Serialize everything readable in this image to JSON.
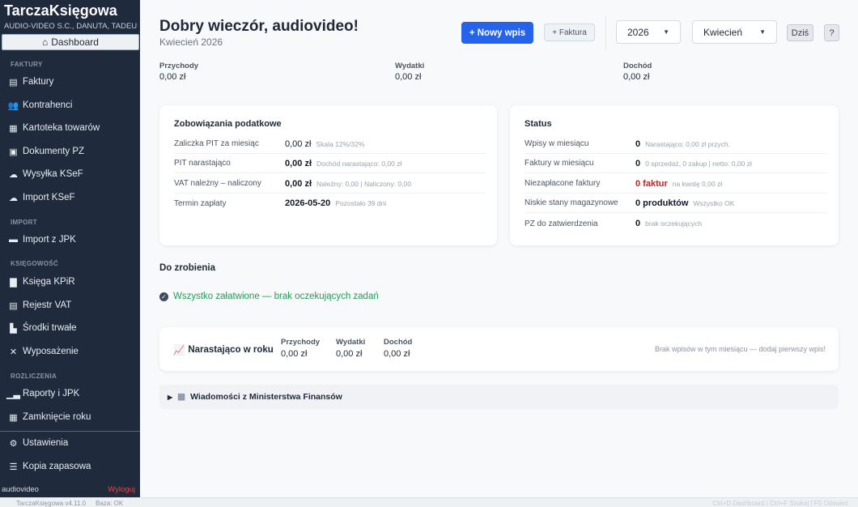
{
  "sidebar": {
    "brand": "TarczaKsięgowa",
    "company": "AUDIO-VIDEO S.C., DANUTA, TADEUSZ ...",
    "dashboard": "Dashboard",
    "sections": {
      "faktury": "FAKTURY",
      "import": "IMPORT",
      "ksiegowosc": "KSIĘGOWOŚĆ",
      "rozliczenia": "ROZLICZENIA"
    },
    "items": [
      "Faktury",
      "Kontrahenci",
      "Kartoteka towarów",
      "Dokumenty PZ",
      "Wysyłka KSeF",
      "Import KSeF",
      "Import z JPK",
      "Księga KPiR",
      "Rejestr VAT",
      "Środki trwałe",
      "Wyposażenie",
      "Raporty i JPK",
      "Zamknięcie roku",
      "Ustawienia",
      "Kopia zapasowa"
    ],
    "user": "audiovideo",
    "logout": "Wyloguj"
  },
  "footer": {
    "version": "TarczaKsięgowa v4.11.0",
    "db": "Baza: OK",
    "shortcuts": "Ctrl+D Dashboard | Ctrl+F Szukaj | F5 Odśwież"
  },
  "header": {
    "title": "Dobry wieczór, audiovideo!",
    "subtitle": "Kwiecień 2026",
    "new_entry": "+ Nowy wpis",
    "new_invoice": "+ Faktura",
    "year": "2026",
    "month": "Kwiecień",
    "today": "Dziś",
    "help": "?"
  },
  "summary": [
    {
      "label": "Przychody",
      "value": "0,00 zł"
    },
    {
      "label": "Wydatki",
      "value": "0,00 zł"
    },
    {
      "label": "Dochód",
      "value": "0,00 zł"
    }
  ],
  "tax": {
    "title": "Zobowiązania podatkowe",
    "rows": [
      {
        "label": "Zaliczka PIT za miesiąc",
        "value": "0,00 zł",
        "hint": "Skala 12%/32%"
      },
      {
        "label": "PIT narastająco",
        "value": "0,00 zł",
        "hint": "Dochód narastająco: 0,00 zł"
      },
      {
        "label": "VAT należny – naliczony",
        "value": "0,00 zł",
        "hint": "Należny: 0,00 | Naliczony: 0,00"
      },
      {
        "label": "Termin zapłaty",
        "value": "2026-05-20",
        "hint": "Pozostało 39 dni"
      }
    ]
  },
  "status": {
    "title": "Status",
    "rows": [
      {
        "label": "Wpisy w miesiącu",
        "value": "0",
        "hint": "Narastająco: 0,00 zł przych."
      },
      {
        "label": "Faktury w miesiącu",
        "value": "0",
        "hint": "0 sprzedaż, 0 zakup | netto: 0,00 zł"
      },
      {
        "label": "Niezapłacone faktury",
        "value": "0 faktur",
        "hint": "na kwotę 0,00 zł"
      },
      {
        "label": "Niskie stany magazynowe",
        "value": "0 produktów",
        "hint": "Wszystko OK"
      },
      {
        "label": "PZ do zatwierdzenia",
        "value": "0",
        "hint": "brak oczekujących"
      }
    ]
  },
  "todo": {
    "title": "Do zrobienia",
    "message": "Wszystko załatwione — brak oczekujących zadań"
  },
  "ytd": {
    "title": "Narastająco w roku",
    "cols": [
      {
        "label": "Przychody",
        "value": "0,00 zł"
      },
      {
        "label": "Wydatki",
        "value": "0,00 zł"
      },
      {
        "label": "Dochód",
        "value": "0,00 zł"
      }
    ],
    "message": "Brak wpisów w tym miesiącu — dodaj pierwszy wpis!"
  },
  "news": {
    "title": "Wiadomości z Ministerstwa Finansów"
  },
  "colors": {
    "primary": "#2563eb",
    "sidebar": "#1f2a3c",
    "success": "#1f9d55",
    "danger": "#c81e1e"
  }
}
